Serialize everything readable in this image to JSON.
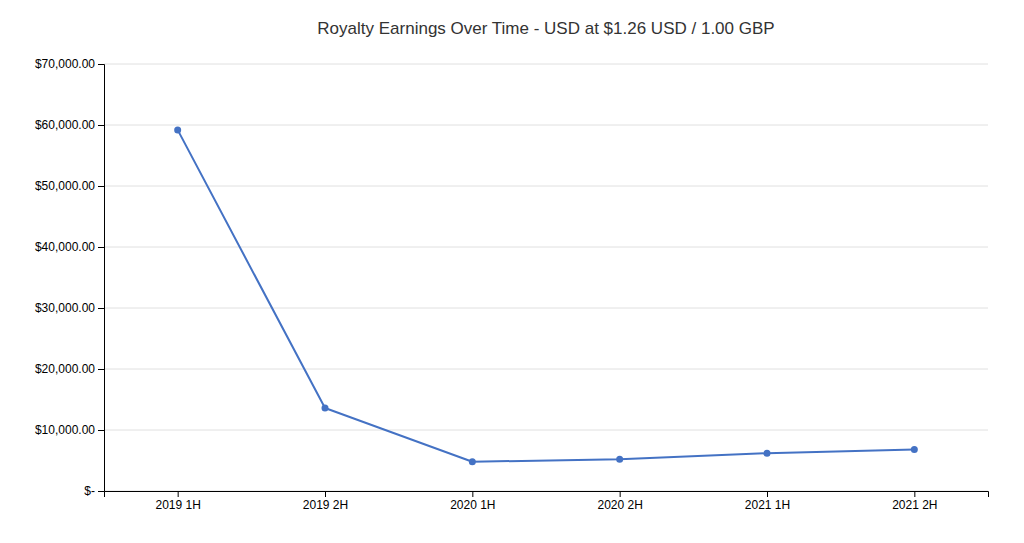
{
  "chart_data": {
    "type": "line",
    "title": "Royalty Earnings Over Time - USD at $1.26 USD / 1.00 GBP",
    "categories": [
      "2019 1H",
      "2019 2H",
      "2020 1H",
      "2020 2H",
      "2021 1H",
      "2021 2H"
    ],
    "values": [
      59200,
      13600,
      4800,
      5200,
      6200,
      6800
    ],
    "color": "#4472C4",
    "marker": "circle",
    "ylim": [
      0,
      70000
    ],
    "yticks": [
      {
        "value": 0,
        "label": "$-"
      },
      {
        "value": 10000,
        "label": "$10,000.00"
      },
      {
        "value": 20000,
        "label": "$20,000.00"
      },
      {
        "value": 30000,
        "label": "$30,000.00"
      },
      {
        "value": 40000,
        "label": "$40,000.00"
      },
      {
        "value": 50000,
        "label": "$50,000.00"
      },
      {
        "value": 60000,
        "label": "$60,000.00"
      },
      {
        "value": 70000,
        "label": "$70,000.00"
      }
    ],
    "grid": true
  }
}
